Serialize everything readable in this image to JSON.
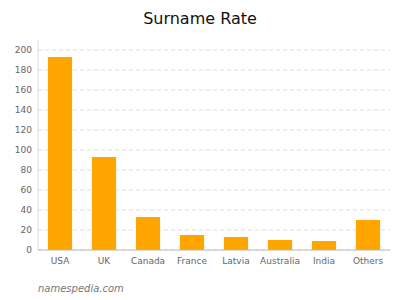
{
  "chart_data": {
    "type": "bar",
    "title": "Surname Rate",
    "categories": [
      "USA",
      "UK",
      "Canada",
      "France",
      "Latvia",
      "Australia",
      "India",
      "Others"
    ],
    "values": [
      193,
      93,
      33,
      15,
      13,
      10,
      9,
      30
    ],
    "color": "#FFA500",
    "ylim": [
      0,
      210
    ],
    "yticks": [
      0,
      20,
      40,
      60,
      80,
      100,
      120,
      140,
      160,
      180,
      200
    ],
    "grid": true,
    "annotations": [
      "namespedia.com"
    ]
  }
}
